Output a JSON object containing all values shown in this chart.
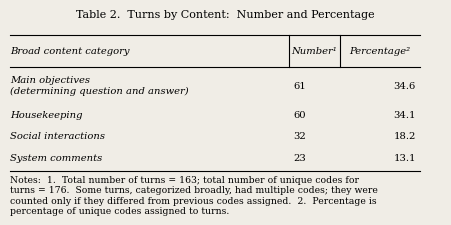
{
  "title": "Table 2.  Turns by Content:  Number and Percentage",
  "col_headers": [
    "Broad content category",
    "Number¹",
    "Percentage²"
  ],
  "rows": [
    [
      "Main objectives\n(determining question and answer)",
      "61",
      "34.6"
    ],
    [
      "Housekeeping",
      "60",
      "34.1"
    ],
    [
      "Social interactions",
      "32",
      "18.2"
    ],
    [
      "System comments",
      "23",
      "13.1"
    ]
  ],
  "notes": "Notes:  1.  Total number of turns = 163; total number of unique codes for\nturns = 176.  Some turns, categorized broadly, had multiple codes; they were\ncounted only if they differed from previous codes assigned.  2.  Percentage is\npercentage of unique codes assigned to turns.",
  "bg_color": "#f0ede6",
  "font_size": 7.2,
  "title_font_size": 8.0
}
